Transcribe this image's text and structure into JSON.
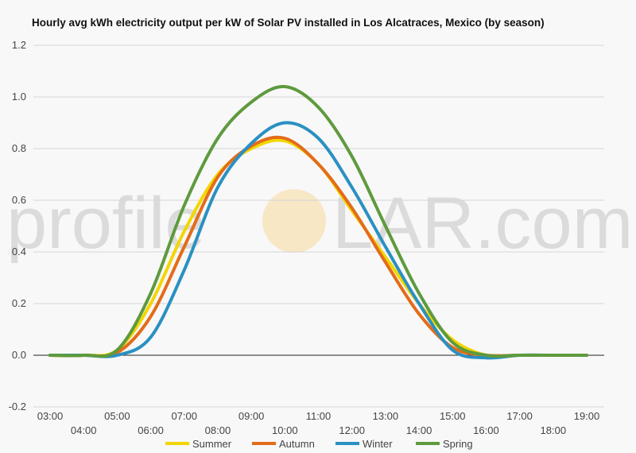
{
  "chart_data": {
    "type": "line",
    "title": "Hourly avg kWh electricity output per kW of Solar PV installed in Los Alcatraces, Mexico (by season)",
    "xlabel": "",
    "ylabel": "",
    "ylim": [
      -0.2,
      1.2
    ],
    "yticks": [
      "-0.2",
      "0.0",
      "0.2",
      "0.4",
      "0.6",
      "0.8",
      "1.0",
      "1.2"
    ],
    "x": [
      "03:00",
      "04:00",
      "05:00",
      "06:00",
      "07:00",
      "08:00",
      "09:00",
      "10:00",
      "11:00",
      "12:00",
      "13:00",
      "14:00",
      "15:00",
      "16:00",
      "17:00",
      "18:00",
      "19:00"
    ],
    "grid": true,
    "legend_position": "bottom",
    "series": [
      {
        "name": "Summer",
        "color": "#f2d600",
        "values": [
          0.0,
          0.0,
          0.02,
          0.2,
          0.48,
          0.7,
          0.8,
          0.83,
          0.74,
          0.56,
          0.38,
          0.2,
          0.06,
          0.0,
          0.0,
          0.0,
          0.0
        ]
      },
      {
        "name": "Autumn",
        "color": "#e36c1a",
        "values": [
          0.0,
          0.0,
          0.01,
          0.15,
          0.42,
          0.69,
          0.81,
          0.84,
          0.74,
          0.57,
          0.36,
          0.16,
          0.03,
          0.0,
          0.0,
          0.0,
          0.0
        ]
      },
      {
        "name": "Winter",
        "color": "#2a90c2",
        "values": [
          0.0,
          0.0,
          0.0,
          0.07,
          0.33,
          0.65,
          0.82,
          0.9,
          0.84,
          0.65,
          0.42,
          0.2,
          0.02,
          -0.01,
          0.0,
          0.0,
          0.0
        ]
      },
      {
        "name": "Spring",
        "color": "#5e9a3e",
        "values": [
          0.0,
          0.0,
          0.02,
          0.24,
          0.58,
          0.84,
          0.98,
          1.04,
          0.96,
          0.77,
          0.5,
          0.24,
          0.05,
          0.0,
          0.0,
          0.0,
          0.0
        ]
      }
    ]
  },
  "watermark": {
    "left": "profile",
    "right": "LAR.com"
  }
}
